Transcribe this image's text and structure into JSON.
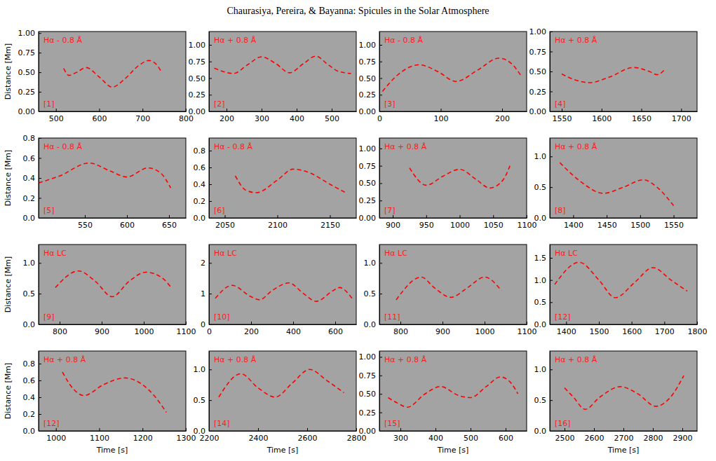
{
  "title": "Chaurasiya, Pereira, & Bayanna: Spicules in the Solar Atmosphere",
  "chart_data": [
    {
      "type": "line",
      "title": "Hα - 0.8 Å",
      "panel_label": "[1]",
      "ylabel": "Distance [Mm]",
      "xlim": [
        460,
        800
      ],
      "xticks": [
        500,
        600,
        700,
        800
      ],
      "ylim": [
        0,
        1.02
      ],
      "yticks": [
        {
          "value": 0,
          "label": "0.00"
        },
        0.25,
        {
          "value": 0.5,
          "label": "0.50"
        },
        0.75,
        {
          "value": 1,
          "label": "1.00"
        }
      ],
      "series": [
        {
          "color": "#ff0000",
          "line_style": "dashed",
          "x": [
            518,
            530,
            548,
            570,
            600,
            630,
            660,
            690,
            715,
            735,
            742
          ],
          "values": [
            0.55,
            0.46,
            0.5,
            0.56,
            0.44,
            0.31,
            0.42,
            0.58,
            0.65,
            0.58,
            0.52
          ]
        }
      ]
    },
    {
      "type": "line",
      "title": "Hα + 0.8 Å",
      "panel_label": "[2]",
      "xlim": [
        150,
        570
      ],
      "xticks": [
        200,
        300,
        400,
        500
      ],
      "ylim": [
        0,
        1.2
      ],
      "yticks": [
        {
          "value": 0,
          "label": "0.00"
        },
        0.25,
        {
          "value": 0.5,
          "label": "0.50"
        },
        0.75,
        {
          "value": 1,
          "label": "1.00"
        }
      ],
      "series": [
        {
          "color": "#ff0000",
          "line_style": "dashed",
          "x": [
            165,
            220,
            260,
            300,
            340,
            380,
            420,
            455,
            490,
            520,
            555
          ],
          "values": [
            0.65,
            0.57,
            0.7,
            0.82,
            0.72,
            0.58,
            0.72,
            0.83,
            0.7,
            0.6,
            0.57
          ]
        }
      ]
    },
    {
      "type": "line",
      "title": "Hα - 0.8 Å",
      "panel_label": "[3]",
      "xlim": [
        0,
        240
      ],
      "xticks": [
        0,
        100,
        200
      ],
      "ylim": [
        0,
        1.2
      ],
      "yticks": [
        {
          "value": 0,
          "label": "0.00"
        },
        0.25,
        {
          "value": 0.5,
          "label": "0.50"
        },
        0.75,
        {
          "value": 1,
          "label": "1.00"
        }
      ],
      "series": [
        {
          "color": "#ff0000",
          "line_style": "dashed",
          "x": [
            5,
            30,
            65,
            95,
            125,
            160,
            195,
            215,
            232
          ],
          "values": [
            0.3,
            0.55,
            0.7,
            0.6,
            0.45,
            0.62,
            0.8,
            0.72,
            0.52
          ]
        }
      ]
    },
    {
      "type": "line",
      "title": "Hα + 0.8 Å",
      "panel_label": "[4]",
      "xlim": [
        1535,
        1720
      ],
      "xticks": [
        1550,
        1600,
        1650,
        1700
      ],
      "ylim": [
        0,
        1.0
      ],
      "yticks": [
        {
          "value": 0,
          "label": "0.00"
        },
        0.25,
        {
          "value": 0.5,
          "label": "0.50"
        },
        0.75,
        {
          "value": 1,
          "label": "1.00"
        }
      ],
      "series": [
        {
          "color": "#ff0000",
          "line_style": "dashed",
          "x": [
            1550,
            1565,
            1585,
            1610,
            1640,
            1660,
            1670,
            1680
          ],
          "values": [
            0.47,
            0.4,
            0.36,
            0.43,
            0.55,
            0.5,
            0.46,
            0.53
          ]
        }
      ]
    },
    {
      "type": "line",
      "title": "Hα - 0.8 Å",
      "panel_label": "[5]",
      "ylabel": "Distance [Mm]",
      "xlim": [
        495,
        670
      ],
      "xticks": [
        550,
        600,
        650
      ],
      "ylim": [
        0,
        0.8
      ],
      "yticks": [
        {
          "value": 0,
          "label": "0.0"
        },
        0.2,
        0.4,
        0.6,
        0.8
      ],
      "series": [
        {
          "color": "#ff0000",
          "line_style": "dashed",
          "x": [
            495,
            520,
            555,
            580,
            600,
            625,
            640,
            652
          ],
          "values": [
            0.35,
            0.42,
            0.55,
            0.47,
            0.41,
            0.5,
            0.45,
            0.3
          ]
        }
      ]
    },
    {
      "type": "line",
      "title": "Hα - 0.8 Å",
      "panel_label": "[6]",
      "xlim": [
        2035,
        2175
      ],
      "xticks": [
        2050,
        2100,
        2150
      ],
      "ylim": [
        0,
        0.95
      ],
      "yticks": [
        {
          "value": 0,
          "label": "0.0"
        },
        0.2,
        0.4,
        0.6,
        0.8
      ],
      "series": [
        {
          "color": "#ff0000",
          "line_style": "dashed",
          "x": [
            2060,
            2070,
            2080,
            2100,
            2115,
            2130,
            2150,
            2165
          ],
          "values": [
            0.5,
            0.33,
            0.3,
            0.45,
            0.58,
            0.54,
            0.4,
            0.3
          ]
        }
      ]
    },
    {
      "type": "line",
      "title": "Hα + 0.8 Å",
      "panel_label": "[7]",
      "xlim": [
        880,
        1100
      ],
      "xticks": [
        900,
        950,
        1000,
        1050,
        1100
      ],
      "ylim": [
        0,
        1.15
      ],
      "yticks": [
        {
          "value": 0,
          "label": "0.00"
        },
        0.25,
        {
          "value": 0.5,
          "label": "0.50"
        },
        0.75,
        {
          "value": 1,
          "label": "1.00"
        }
      ],
      "series": [
        {
          "color": "#ff0000",
          "line_style": "dashed",
          "x": [
            925,
            950,
            975,
            1000,
            1025,
            1045,
            1065,
            1075
          ],
          "values": [
            0.72,
            0.47,
            0.6,
            0.7,
            0.55,
            0.43,
            0.55,
            0.75
          ]
        }
      ]
    },
    {
      "type": "line",
      "title": "Hα + 0.8 Å",
      "panel_label": "[8]",
      "xlim": [
        1365,
        1585
      ],
      "xticks": [
        1400,
        1450,
        1500,
        1550
      ],
      "ylim": [
        0,
        1.3
      ],
      "yticks": [
        {
          "value": 0,
          "label": "0.0"
        },
        0.5,
        {
          "value": 1,
          "label": "1.0"
        }
      ],
      "series": [
        {
          "color": "#ff0000",
          "line_style": "dashed",
          "x": [
            1380,
            1410,
            1445,
            1475,
            1505,
            1525,
            1550
          ],
          "values": [
            0.9,
            0.6,
            0.4,
            0.5,
            0.62,
            0.5,
            0.2
          ]
        }
      ]
    },
    {
      "type": "line",
      "title": "Hα LC",
      "panel_label": "[9]",
      "ylabel": "Distance [Mm]",
      "xlim": [
        750,
        1100
      ],
      "xticks": [
        800,
        900,
        1000,
        1100
      ],
      "ylim": [
        0,
        1.3
      ],
      "yticks": [
        {
          "value": 0,
          "label": "0.0"
        },
        0.5,
        {
          "value": 1,
          "label": "1.0"
        }
      ],
      "series": [
        {
          "color": "#ff0000",
          "line_style": "dashed",
          "x": [
            790,
            845,
            885,
            925,
            965,
            1005,
            1045,
            1065
          ],
          "values": [
            0.6,
            0.87,
            0.7,
            0.45,
            0.7,
            0.85,
            0.75,
            0.6
          ]
        }
      ]
    },
    {
      "type": "line",
      "title": "Hα LC",
      "panel_label": "[10]",
      "xlim": [
        0,
        700
      ],
      "xticks": [
        0,
        200,
        400,
        600
      ],
      "ylim": [
        0,
        2.6
      ],
      "yticks": [
        0,
        1,
        2
      ],
      "series": [
        {
          "color": "#ff0000",
          "line_style": "dashed",
          "x": [
            30,
            110,
            200,
            240,
            300,
            380,
            450,
            510,
            590,
            620,
            680
          ],
          "values": [
            0.85,
            1.27,
            0.9,
            0.8,
            1.1,
            1.35,
            1.0,
            0.75,
            1.1,
            1.2,
            0.85
          ]
        }
      ]
    },
    {
      "type": "line",
      "title": "Hα LC",
      "panel_label": "[11]",
      "xlim": [
        750,
        1100
      ],
      "xticks": [
        800,
        900,
        1000,
        1100
      ],
      "ylim": [
        0,
        1.3
      ],
      "yticks": [
        {
          "value": 0,
          "label": "0.0"
        },
        0.5,
        {
          "value": 1,
          "label": "1.0"
        }
      ],
      "series": [
        {
          "color": "#ff0000",
          "line_style": "dashed",
          "x": [
            790,
            850,
            880,
            920,
            960,
            1000,
            1040
          ],
          "values": [
            0.4,
            0.77,
            0.6,
            0.44,
            0.6,
            0.77,
            0.55
          ]
        }
      ]
    },
    {
      "type": "line",
      "title": "Hα LC",
      "panel_label": "[12]",
      "xlim": [
        1350,
        1800
      ],
      "xticks": [
        1400,
        1500,
        1600,
        1700,
        1800
      ],
      "ylim": [
        0,
        1.8
      ],
      "yticks": [
        {
          "value": 0,
          "label": "0.0"
        },
        0.5,
        {
          "value": 1,
          "label": "1.0"
        },
        1.5
      ],
      "series": [
        {
          "color": "#ff0000",
          "line_style": "dashed",
          "x": [
            1365,
            1440,
            1500,
            1550,
            1610,
            1665,
            1720,
            1770
          ],
          "values": [
            0.9,
            1.4,
            1.0,
            0.6,
            0.95,
            1.28,
            1.0,
            0.75
          ]
        }
      ]
    },
    {
      "type": "line",
      "title": "Hα + 0.8 Å",
      "panel_label": "[12]",
      "ylabel": "Distance [Mm]",
      "xlabel": "Time [s]",
      "xlim": [
        960,
        1300
      ],
      "xticks": [
        1000,
        1100,
        1200,
        1300
      ],
      "ylim": [
        0,
        0.95
      ],
      "yticks": [
        {
          "value": 0,
          "label": "0.0"
        },
        0.2,
        0.4,
        0.6,
        0.8
      ],
      "series": [
        {
          "color": "#ff0000",
          "line_style": "dashed",
          "x": [
            1015,
            1040,
            1065,
            1110,
            1160,
            1200,
            1230,
            1255
          ],
          "values": [
            0.7,
            0.5,
            0.42,
            0.55,
            0.63,
            0.55,
            0.4,
            0.22
          ]
        }
      ]
    },
    {
      "type": "line",
      "title": "Hα + 0.8 Å",
      "panel_label": "[14]",
      "xlabel": "Time [s]",
      "xlim": [
        2200,
        2800
      ],
      "xticks": [
        2200,
        2400,
        2600,
        2800
      ],
      "ylim": [
        0,
        1.3
      ],
      "yticks": [
        {
          "value": 0,
          "label": "0.0"
        },
        0.5,
        {
          "value": 1,
          "label": "1.0"
        }
      ],
      "series": [
        {
          "color": "#ff0000",
          "line_style": "dashed",
          "x": [
            2240,
            2330,
            2400,
            2470,
            2540,
            2610,
            2680,
            2750
          ],
          "values": [
            0.55,
            0.93,
            0.7,
            0.55,
            0.78,
            1.0,
            0.82,
            0.62
          ]
        }
      ]
    },
    {
      "type": "line",
      "title": "Hα + 0.8 Å",
      "panel_label": "[15]",
      "xlabel": "Time [s]",
      "xlim": [
        240,
        660
      ],
      "xticks": [
        300,
        400,
        500,
        600
      ],
      "ylim": [
        0,
        1.08
      ],
      "yticks": [
        {
          "value": 0,
          "label": "0.00"
        },
        0.25,
        {
          "value": 0.5,
          "label": "0.50"
        },
        0.75,
        {
          "value": 1,
          "label": "1.00"
        }
      ],
      "series": [
        {
          "color": "#ff0000",
          "line_style": "dashed",
          "x": [
            265,
            290,
            320,
            370,
            415,
            465,
            500,
            545,
            585,
            615,
            635
          ],
          "values": [
            0.45,
            0.38,
            0.32,
            0.5,
            0.6,
            0.48,
            0.45,
            0.6,
            0.73,
            0.65,
            0.5
          ]
        }
      ]
    },
    {
      "type": "line",
      "title": "Hα + 0.8 Å",
      "panel_label": "[16]",
      "xlabel": "Time [s]",
      "xlim": [
        2450,
        2950
      ],
      "xticks": [
        2500,
        2600,
        2700,
        2800,
        2900
      ],
      "ylim": [
        0,
        1.3
      ],
      "yticks": [
        {
          "value": 0,
          "label": "0.0"
        },
        0.5,
        {
          "value": 1,
          "label": "1.0"
        }
      ],
      "series": [
        {
          "color": "#ff0000",
          "line_style": "dashed",
          "x": [
            2500,
            2530,
            2570,
            2620,
            2690,
            2750,
            2810,
            2860,
            2905
          ],
          "values": [
            0.7,
            0.55,
            0.35,
            0.55,
            0.72,
            0.6,
            0.4,
            0.55,
            0.9
          ]
        }
      ]
    }
  ]
}
